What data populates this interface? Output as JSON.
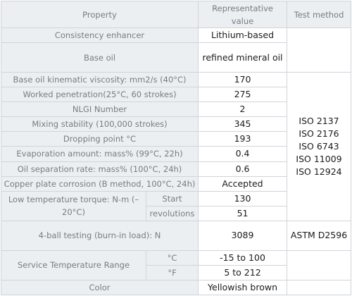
{
  "headers": {
    "property": "Property",
    "value": "Representative value",
    "method": "Test method"
  },
  "rows": {
    "consistency_enhancer": {
      "label": "Consistency enhancer",
      "value": "Lithium-based"
    },
    "base_oil": {
      "label": "Base oil",
      "value": "refined mineral oil"
    },
    "viscosity": {
      "label": "Base oil kinematic viscosity: mm2/s (40°C)",
      "value": "170"
    },
    "worked_penetration": {
      "label": "Worked penetration(25°C, 60 strokes)",
      "value": "275"
    },
    "nlgi": {
      "label": "NLGI Number",
      "value": "2"
    },
    "mixing_stability": {
      "label": "Mixing stability (100,000 strokes)",
      "value": "345"
    },
    "dropping_point": {
      "label": "Dropping point °C",
      "value": "193"
    },
    "evaporation": {
      "label": "Evaporation amount: mass% (99°C, 22h)",
      "value": "0.4"
    },
    "oil_separation": {
      "label": "Oil separation rate: mass% (100°C, 24h)",
      "value": "0.6"
    },
    "copper_corrosion": {
      "label": "Copper plate corrosion (B method, 100°C, 24h)",
      "value": "Accepted"
    },
    "low_temp_torque": {
      "label": "Low temperature torque: N-m (– 20°C)",
      "start_label": "Start",
      "start_value": "130",
      "revolutions_label": "revolutions",
      "revolutions_value": "51"
    },
    "four_ball": {
      "label": "4-ball testing (burn-in load): N",
      "value": "3089",
      "method": "ASTM D2596"
    },
    "service_temp": {
      "label": "Service Temperature Range",
      "c_label": "°C",
      "c_value": "-15 to 100",
      "f_label": "°F",
      "f_value": "5 to 212"
    },
    "color": {
      "label": "Color",
      "value": "Yellowish brown"
    }
  },
  "test_methods": [
    "ISO 2137",
    "ISO 2176",
    "ISO 6743",
    "ISO 11009",
    "ISO 12924"
  ]
}
